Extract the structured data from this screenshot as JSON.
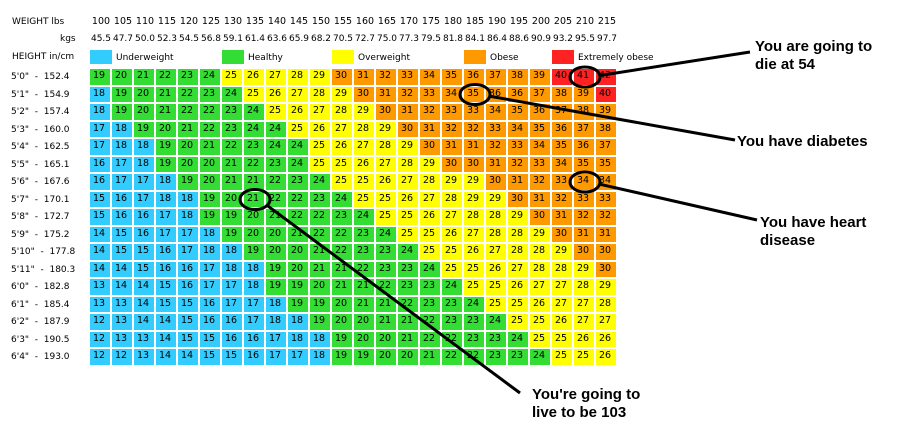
{
  "chart_data": {
    "type": "table",
    "title": "",
    "row_header": "HEIGHT in/cm",
    "weight_header": "WEIGHT lbs",
    "kgs_header": "kgs",
    "weights_lbs": [
      "100",
      "105",
      "110",
      "115",
      "120",
      "125",
      "130",
      "135",
      "140",
      "145",
      "150",
      "155",
      "160",
      "165",
      "170",
      "175",
      "180",
      "185",
      "190",
      "195",
      "200",
      "205",
      "210",
      "215"
    ],
    "weights_kgs": [
      "45.5",
      "47.7",
      "50.0",
      "52.3",
      "54.5",
      "56.8",
      "59.1",
      "61.4",
      "63.6",
      "65.9",
      "68.2",
      "70.5",
      "72.7",
      "75.0",
      "77.3",
      "79.5",
      "81.8",
      "84.1",
      "86.4",
      "88.6",
      "90.9",
      "93.2",
      "95.5",
      "97.7"
    ],
    "heights": [
      "5'0\"  -  152.4",
      "5'1\"  -  154.9",
      "5'2\"  -  157.4",
      "5'3\"  -  160.0",
      "5'4\"  -  162.5",
      "5'5\"  -  165.1",
      "5'6\"  -  167.6",
      "5'7\"  -  170.1",
      "5'8\"  -  172.7",
      "5'9\"  -  175.2",
      "5'10\"  -  177.8",
      "5'11\"  -  180.3",
      "6'0\"  -  182.8",
      "6'1\"  -  185.4",
      "6'2\"  -  187.9",
      "6'3\"  -  190.5",
      "6'4\"  -  193.0"
    ],
    "legend": [
      {
        "label": "Underweight",
        "color": "#33ccff"
      },
      {
        "label": "Healthy",
        "color": "#33dd33"
      },
      {
        "label": "Overweight",
        "color": "#ffff00"
      },
      {
        "label": "Obese",
        "color": "#ff9900"
      },
      {
        "label": "Extremely obese",
        "color": "#ff2222"
      }
    ],
    "category_cutoffs": {
      "healthy_min": 19,
      "overweight_min": 25,
      "obese_min": 30,
      "extreme_min": 40
    },
    "bmi": [
      [
        19,
        20,
        21,
        22,
        23,
        24,
        25,
        26,
        27,
        28,
        29,
        30,
        31,
        32,
        33,
        34,
        35,
        36,
        37,
        38,
        39,
        40,
        41,
        42
      ],
      [
        18,
        19,
        20,
        21,
        22,
        23,
        24,
        25,
        26,
        27,
        28,
        29,
        30,
        31,
        32,
        33,
        34,
        35,
        36,
        36,
        37,
        38,
        39,
        40
      ],
      [
        18,
        19,
        20,
        21,
        22,
        22,
        23,
        24,
        25,
        26,
        27,
        28,
        29,
        30,
        31,
        32,
        33,
        33,
        34,
        35,
        36,
        37,
        38,
        39
      ],
      [
        17,
        18,
        19,
        20,
        21,
        22,
        23,
        24,
        24,
        25,
        26,
        27,
        28,
        29,
        30,
        31,
        32,
        32,
        33,
        34,
        35,
        36,
        37,
        38
      ],
      [
        17,
        18,
        18,
        19,
        20,
        21,
        22,
        23,
        24,
        24,
        25,
        26,
        27,
        28,
        29,
        30,
        31,
        31,
        32,
        33,
        34,
        35,
        36,
        37
      ],
      [
        16,
        17,
        18,
        19,
        20,
        20,
        21,
        22,
        23,
        24,
        25,
        25,
        26,
        27,
        28,
        29,
        30,
        30,
        31,
        32,
        33,
        34,
        35,
        35
      ],
      [
        16,
        17,
        17,
        18,
        19,
        20,
        21,
        21,
        22,
        23,
        24,
        25,
        25,
        26,
        27,
        28,
        29,
        29,
        30,
        31,
        32,
        33,
        34,
        34
      ],
      [
        15,
        16,
        17,
        18,
        18,
        19,
        20,
        21,
        22,
        22,
        23,
        24,
        25,
        25,
        26,
        27,
        28,
        29,
        29,
        30,
        31,
        32,
        33,
        33
      ],
      [
        15,
        16,
        16,
        17,
        18,
        19,
        19,
        20,
        21,
        22,
        22,
        23,
        24,
        25,
        25,
        26,
        27,
        28,
        28,
        29,
        30,
        31,
        32,
        32
      ],
      [
        14,
        15,
        16,
        17,
        17,
        18,
        19,
        20,
        20,
        21,
        22,
        22,
        23,
        24,
        25,
        25,
        26,
        27,
        28,
        28,
        29,
        30,
        31,
        31
      ],
      [
        14,
        15,
        15,
        16,
        17,
        18,
        18,
        19,
        20,
        20,
        21,
        22,
        23,
        23,
        24,
        25,
        25,
        26,
        27,
        28,
        28,
        29,
        30,
        30
      ],
      [
        14,
        14,
        15,
        16,
        16,
        17,
        18,
        18,
        19,
        20,
        21,
        21,
        22,
        23,
        23,
        24,
        25,
        25,
        26,
        27,
        28,
        28,
        29,
        30
      ],
      [
        13,
        14,
        14,
        15,
        16,
        17,
        17,
        18,
        19,
        19,
        20,
        21,
        21,
        22,
        23,
        23,
        24,
        25,
        25,
        26,
        27,
        27,
        28,
        29
      ],
      [
        13,
        13,
        14,
        15,
        15,
        16,
        17,
        17,
        18,
        19,
        19,
        20,
        21,
        21,
        22,
        23,
        23,
        24,
        25,
        25,
        26,
        27,
        27,
        28
      ],
      [
        12,
        13,
        14,
        14,
        15,
        16,
        16,
        17,
        18,
        18,
        19,
        20,
        20,
        21,
        21,
        22,
        23,
        23,
        24,
        25,
        25,
        26,
        27,
        27
      ],
      [
        12,
        13,
        13,
        14,
        15,
        15,
        16,
        16,
        17,
        18,
        18,
        19,
        20,
        20,
        21,
        22,
        22,
        23,
        23,
        24,
        25,
        25,
        26,
        26
      ],
      [
        12,
        12,
        13,
        14,
        14,
        15,
        15,
        16,
        17,
        17,
        18,
        19,
        19,
        20,
        20,
        21,
        22,
        22,
        23,
        23,
        24,
        25,
        25,
        26
      ]
    ],
    "annotations": [
      {
        "text": "You are going to\ndie at 54",
        "row": 0,
        "col": 22
      },
      {
        "text": "You have diabetes",
        "row": 1,
        "col": 17
      },
      {
        "text": "You have heart\ndisease",
        "row": 6,
        "col": 22
      },
      {
        "text": "You're going to\nlive to be 103",
        "row": 7,
        "col": 7
      }
    ]
  }
}
